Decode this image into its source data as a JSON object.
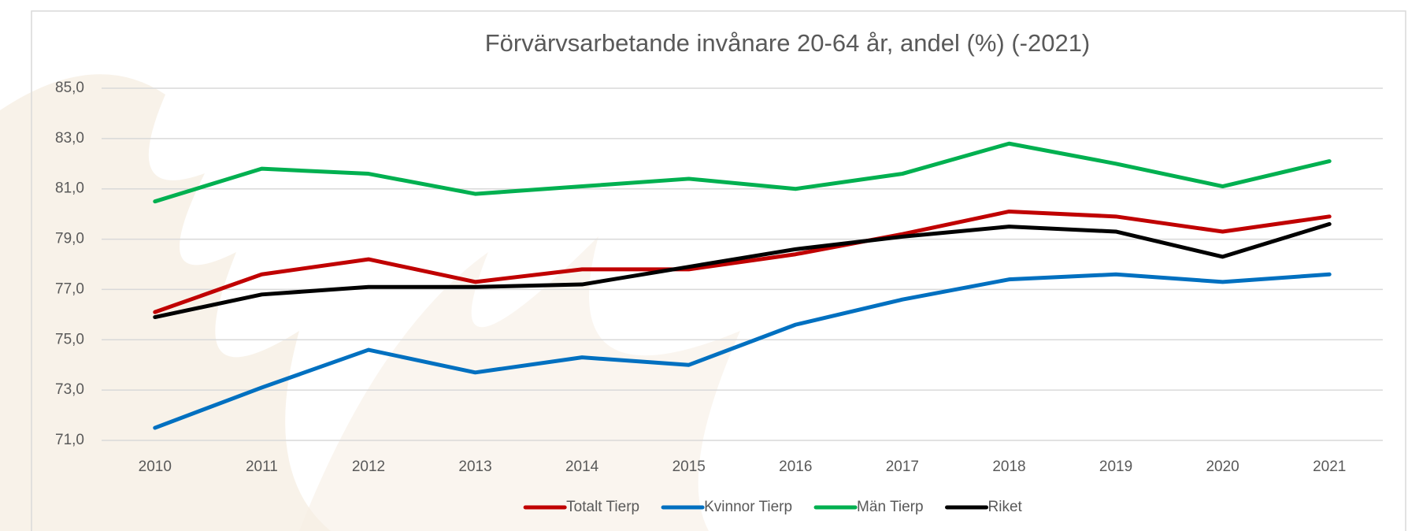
{
  "chart_data": {
    "type": "line",
    "title": "Förvärvsarbetande invånare 20-64 år, andel (%)  (-2021)",
    "categories": [
      "2010",
      "2011",
      "2012",
      "2013",
      "2014",
      "2015",
      "2016",
      "2017",
      "2018",
      "2019",
      "2020",
      "2021"
    ],
    "series": [
      {
        "name": "Totalt Tierp",
        "color": "#c00000",
        "values": [
          76.1,
          77.6,
          78.2,
          77.3,
          77.8,
          77.8,
          78.4,
          79.2,
          80.1,
          79.9,
          79.3,
          79.9
        ]
      },
      {
        "name": "Kvinnor Tierp",
        "color": "#0070c0",
        "values": [
          71.5,
          73.1,
          74.6,
          73.7,
          74.3,
          74.0,
          75.6,
          76.6,
          77.4,
          77.6,
          77.3,
          77.6
        ]
      },
      {
        "name": "Män Tierp",
        "color": "#00b050",
        "values": [
          80.5,
          81.8,
          81.6,
          80.8,
          81.1,
          81.4,
          81.0,
          81.6,
          82.8,
          82.0,
          81.1,
          82.1
        ]
      },
      {
        "name": "Riket",
        "color": "#000000",
        "values": [
          75.9,
          76.8,
          77.1,
          77.1,
          77.2,
          77.9,
          78.6,
          79.1,
          79.5,
          79.3,
          78.3,
          79.6
        ]
      }
    ],
    "ylim": [
      71,
      85
    ],
    "yticks": [
      {
        "value": 71,
        "label": "71,0"
      },
      {
        "value": 73,
        "label": "73,0"
      },
      {
        "value": 75,
        "label": "75,0"
      },
      {
        "value": 77,
        "label": "77,0"
      },
      {
        "value": 79,
        "label": "79,0"
      },
      {
        "value": 81,
        "label": "81,0"
      },
      {
        "value": 83,
        "label": "83,0"
      },
      {
        "value": 85,
        "label": "85,0"
      }
    ],
    "grid": true,
    "legend": "bottom"
  }
}
